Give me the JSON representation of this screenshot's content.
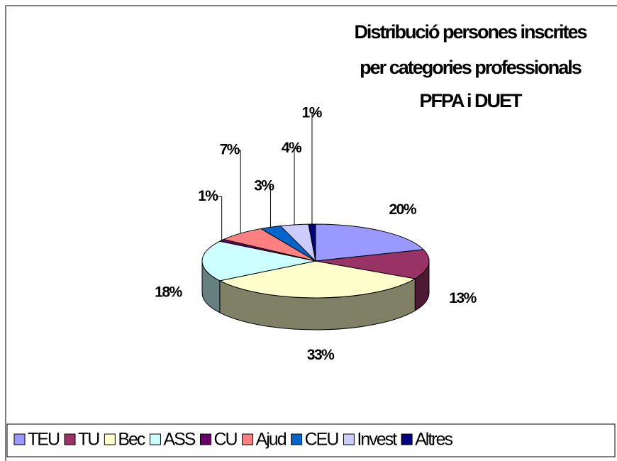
{
  "chart_data": {
    "type": "pie3d",
    "title": [
      "Distribució persones inscrites",
      "per categories professionals",
      "PFPA i DUET"
    ],
    "categories": [
      "TEU",
      "TU",
      "Bec",
      "ASS",
      "CU",
      "Ajud",
      "CEU",
      "Invest",
      "Altres"
    ],
    "values": [
      20,
      13,
      33,
      18,
      1,
      7,
      3,
      4,
      1
    ],
    "value_labels": [
      "20%",
      "13%",
      "33%",
      "18%",
      "1%",
      "7%",
      "3%",
      "4%",
      "1%"
    ],
    "colors": [
      "#9999ff",
      "#993366",
      "#ffffcc",
      "#ccffff",
      "#660066",
      "#ff8080",
      "#0066cc",
      "#ccccff",
      "#000080"
    ],
    "legend": "bottom"
  }
}
